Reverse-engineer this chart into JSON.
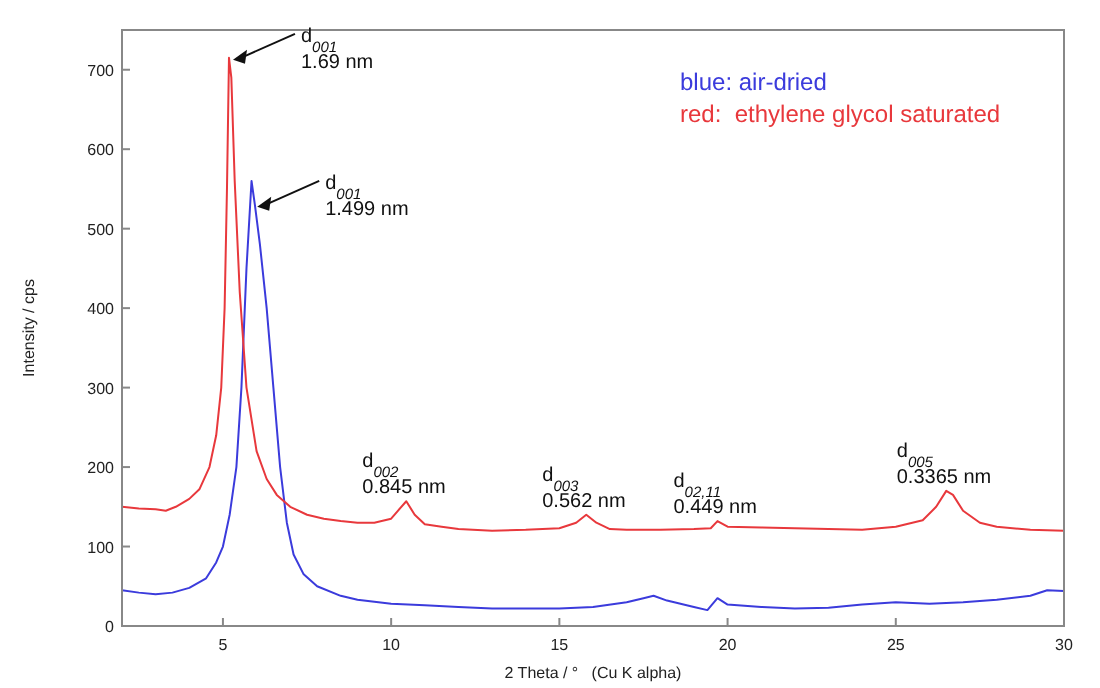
{
  "chart_data": {
    "type": "line",
    "xlabel": "2 Theta / °   (Cu K alpha)",
    "ylabel": "Intensity / cps",
    "xlim": [
      2,
      30
    ],
    "ylim": [
      0,
      750
    ],
    "xticks": [
      5,
      10,
      15,
      20,
      25,
      30
    ],
    "yticks": [
      0,
      100,
      200,
      300,
      400,
      500,
      600,
      700
    ],
    "legend": "top right",
    "grid": false,
    "marker": "none",
    "line_style": "solid",
    "series": [
      {
        "name": "blue: air-dried",
        "color": "#3b3bdc",
        "x": [
          2,
          2.5,
          3,
          3.5,
          4,
          4.5,
          4.8,
          5,
          5.2,
          5.4,
          5.55,
          5.7,
          5.85,
          5.95,
          6.1,
          6.3,
          6.5,
          6.7,
          6.9,
          7.1,
          7.4,
          7.8,
          8.5,
          9,
          10,
          11,
          12,
          13,
          14,
          15,
          16,
          17,
          17.5,
          17.8,
          18.2,
          19,
          19.4,
          19.7,
          20,
          21,
          22,
          23,
          24,
          25,
          26,
          27,
          28,
          29,
          29.5,
          30
        ],
        "values": [
          45,
          42,
          40,
          42,
          48,
          60,
          80,
          100,
          140,
          200,
          300,
          450,
          560,
          530,
          480,
          400,
          300,
          200,
          130,
          90,
          65,
          50,
          38,
          33,
          28,
          26,
          24,
          22,
          22,
          22,
          24,
          30,
          35,
          38,
          32,
          24,
          20,
          35,
          27,
          24,
          22,
          23,
          27,
          30,
          28,
          30,
          33,
          38,
          45,
          44
        ]
      },
      {
        "name": "red:  ethylene glycol saturated",
        "color": "#e8383c",
        "x": [
          2,
          2.5,
          3,
          3.3,
          3.6,
          4,
          4.3,
          4.6,
          4.8,
          4.95,
          5.05,
          5.12,
          5.18,
          5.25,
          5.35,
          5.5,
          5.7,
          6,
          6.3,
          6.6,
          7,
          7.5,
          8,
          8.5,
          9,
          9.5,
          10,
          10.2,
          10.45,
          10.7,
          11,
          11.5,
          12,
          13,
          14,
          15,
          15.5,
          15.8,
          16.1,
          16.5,
          17,
          18,
          19,
          19.5,
          19.7,
          20,
          21,
          22,
          23,
          24,
          25,
          25.8,
          26.2,
          26.5,
          26.7,
          27,
          27.5,
          28,
          29,
          30
        ],
        "values": [
          150,
          148,
          147,
          145,
          150,
          160,
          172,
          200,
          240,
          300,
          400,
          550,
          715,
          690,
          560,
          420,
          300,
          220,
          185,
          165,
          150,
          140,
          135,
          132,
          130,
          130,
          135,
          145,
          157,
          140,
          128,
          125,
          122,
          120,
          121,
          123,
          130,
          140,
          130,
          122,
          121,
          121,
          122,
          123,
          132,
          125,
          124,
          123,
          122,
          121,
          125,
          133,
          150,
          170,
          165,
          145,
          130,
          125,
          121,
          120
        ]
      }
    ],
    "annotations": [
      {
        "text": "d$_{001}$\n1.69 nm",
        "x": 5.18,
        "y": 715
      },
      {
        "text": "d$_{001}$\n1.499 nm",
        "x": 5.9,
        "y": 530
      },
      {
        "text": "d$_{002}$\n0.845 nm",
        "x": 10.45,
        "y": 157
      },
      {
        "text": "d$_{003}$\n0.562 nm",
        "x": 15.8,
        "y": 140
      },
      {
        "text": "d$_{02,11}$\n0.449 nm",
        "x": 19.7,
        "y": 132
      },
      {
        "text": "d$_{005}$\n0.3365 nm",
        "x": 26.5,
        "y": 170
      }
    ]
  }
}
